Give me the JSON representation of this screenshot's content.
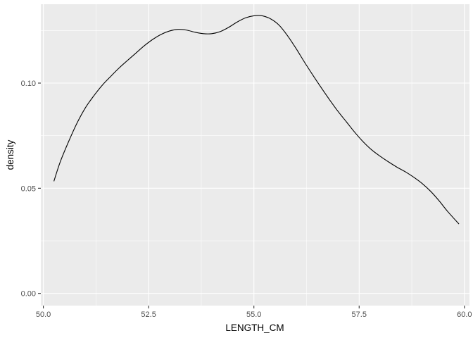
{
  "chart_data": {
    "type": "line",
    "title": "",
    "xlabel": "LENGTH_CM",
    "ylabel": "density",
    "xlim": [
      49.94,
      60.12
    ],
    "ylim": [
      -0.0058,
      0.1375
    ],
    "xticks": [
      50.0,
      52.5,
      55.0,
      57.5,
      60.0
    ],
    "xtick_labels": [
      "50.0",
      "52.5",
      "55.0",
      "57.5",
      "60.0"
    ],
    "yticks": [
      0.0,
      0.05,
      0.1
    ],
    "ytick_labels": [
      "0.00",
      "0.05",
      "0.10"
    ],
    "grid": true,
    "legend": "none",
    "colors": {
      "panel": "#ebebeb",
      "grid": "#ffffff",
      "line": "#000000",
      "tick_text": "#4d4d4d"
    },
    "series": [
      {
        "x": [
          50.25,
          50.4,
          50.6,
          50.8,
          51.0,
          51.2,
          51.4,
          51.6,
          51.8,
          52.0,
          52.2,
          52.4,
          52.6,
          52.8,
          53.0,
          53.2,
          53.4,
          53.6,
          53.8,
          54.0,
          54.2,
          54.4,
          54.6,
          54.8,
          55.0,
          55.2,
          55.4,
          55.6,
          55.8,
          56.0,
          56.2,
          56.4,
          56.6,
          56.8,
          57.0,
          57.2,
          57.4,
          57.6,
          57.8,
          58.0,
          58.2,
          58.4,
          58.6,
          58.8,
          59.0,
          59.2,
          59.4,
          59.6,
          59.87
        ],
        "y": [
          0.0533,
          0.0625,
          0.0722,
          0.081,
          0.0883,
          0.094,
          0.099,
          0.1032,
          0.1072,
          0.1108,
          0.1143,
          0.1178,
          0.1208,
          0.1232,
          0.1248,
          0.1255,
          0.1252,
          0.1242,
          0.1235,
          0.1235,
          0.1245,
          0.1265,
          0.129,
          0.131,
          0.132,
          0.132,
          0.1305,
          0.1275,
          0.1225,
          0.1165,
          0.11,
          0.1038,
          0.0978,
          0.092,
          0.0865,
          0.0815,
          0.0765,
          0.072,
          0.0682,
          0.0652,
          0.0625,
          0.06,
          0.0578,
          0.0552,
          0.0522,
          0.0485,
          0.044,
          0.039,
          0.033
        ]
      }
    ]
  }
}
